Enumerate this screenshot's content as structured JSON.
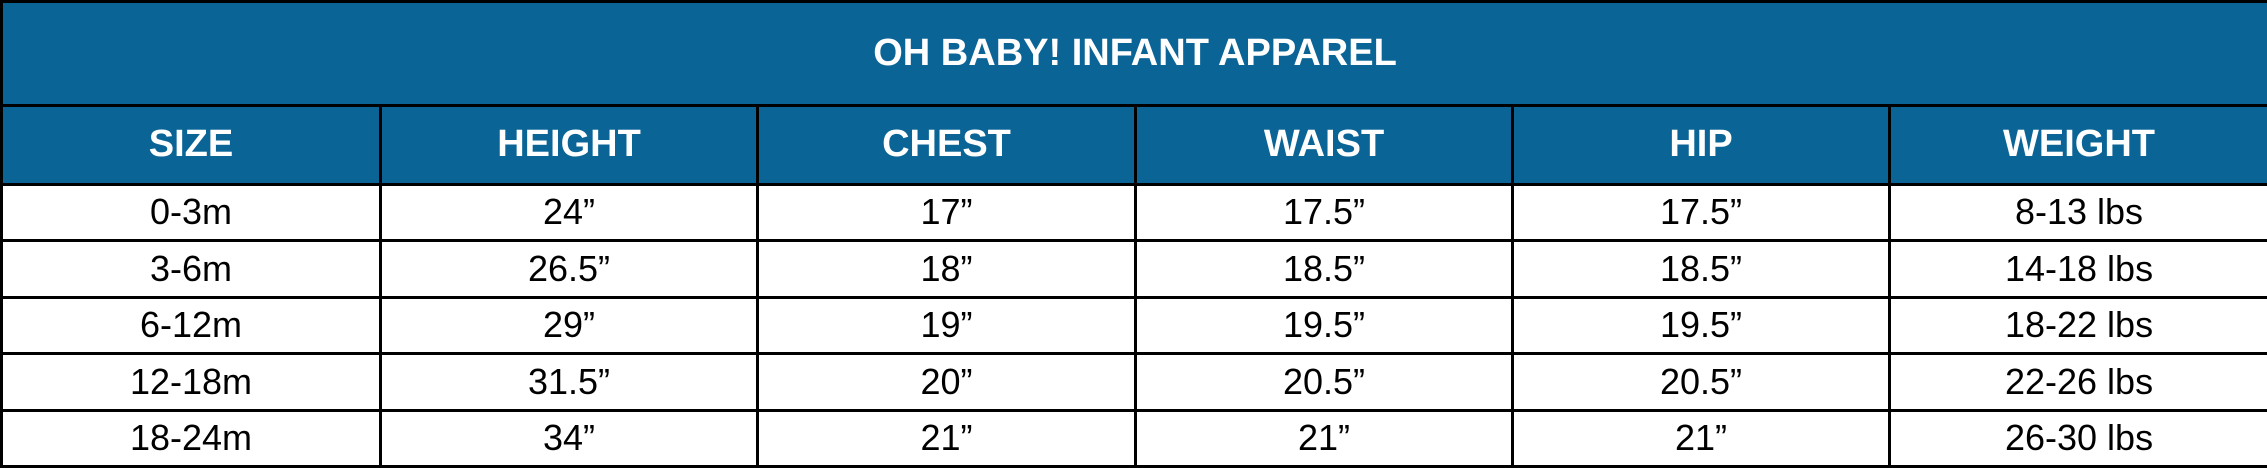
{
  "table": {
    "title": "OH BABY! INFANT APPAREL",
    "headers": [
      "SIZE",
      "HEIGHT",
      "CHEST",
      "WAIST",
      "HIP",
      "WEIGHT"
    ],
    "rows": [
      [
        "0-3m",
        "24”",
        "17”",
        "17.5”",
        "17.5”",
        "8-13 lbs"
      ],
      [
        "3-6m",
        "26.5”",
        "18”",
        "18.5”",
        "18.5”",
        "14-18 lbs"
      ],
      [
        "6-12m",
        "29”",
        "19”",
        "19.5”",
        "19.5”",
        "18-22 lbs"
      ],
      [
        "12-18m",
        "31.5”",
        "20”",
        "20.5”",
        "20.5”",
        "22-26 lbs"
      ],
      [
        "18-24m",
        "34”",
        "21”",
        "21”",
        "21”",
        "26-30 lbs"
      ]
    ]
  }
}
